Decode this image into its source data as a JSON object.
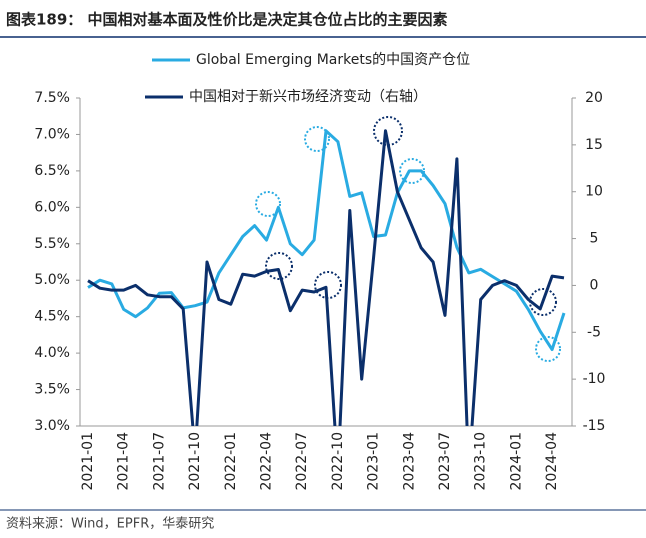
{
  "chart_data": {
    "type": "line",
    "title": "图表189：  中国相对基本面及性价比是决定其仓位占比的主要因素",
    "source": "资料来源：Wind，EPFR，华泰研究",
    "categories": [
      "2021-01",
      null,
      null,
      "2021-04",
      null,
      null,
      "2021-07",
      null,
      null,
      "2021-10",
      null,
      null,
      "2022-01",
      null,
      null,
      "2022-04",
      null,
      null,
      "2022-07",
      null,
      null,
      "2022-10",
      null,
      null,
      "2023-01",
      null,
      null,
      "2023-04",
      null,
      null,
      "2023-07",
      null,
      null,
      "2023-10",
      null,
      null,
      "2024-01",
      null,
      null,
      "2024-04",
      null
    ],
    "series": [
      {
        "name": "Global Emerging Markets的中国资产仓位",
        "color": "#29abe2",
        "values": [
          4.9,
          5.0,
          4.95,
          4.6,
          4.5,
          4.62,
          4.82,
          4.83,
          4.62,
          4.65,
          4.7,
          5.1,
          5.35,
          5.6,
          5.75,
          5.55,
          6.0,
          5.5,
          5.35,
          5.55,
          7.05,
          6.9,
          6.15,
          6.2,
          5.6,
          5.62,
          6.2,
          6.5,
          6.5,
          6.3,
          6.05,
          5.45,
          5.1,
          5.15,
          5.05,
          4.95,
          4.85,
          4.6,
          4.3,
          4.05,
          4.55
        ]
      },
      {
        "name": "中国相对于新兴市场经济变动（右轴）",
        "color": "#0b2f6b",
        "axis": "y2",
        "values": [
          0.5,
          -0.3,
          -0.5,
          -0.5,
          0,
          -1,
          -1.2,
          -1.2,
          -2.5,
          -18,
          2.5,
          -1.5,
          -2,
          1.2,
          1,
          1.5,
          1.7,
          -2.7,
          -0.5,
          -0.7,
          -0.2,
          -20,
          8,
          -10,
          3,
          16.5,
          10,
          7,
          4,
          2.5,
          -3.2,
          13.5,
          -20,
          -1.5,
          0,
          0.5,
          0,
          -1.5,
          -2.5,
          1,
          0.8
        ]
      }
    ],
    "ylim": [
      3.0,
      7.5
    ],
    "yticks": [
      {
        "value": 3.0,
        "label": "3.0%"
      },
      {
        "value": 3.5,
        "label": "3.5%"
      },
      {
        "value": 4.0,
        "label": "4.0%"
      },
      {
        "value": 4.5,
        "label": "4.5%"
      },
      {
        "value": 5.0,
        "label": "5.0%"
      },
      {
        "value": 5.5,
        "label": "5.5%"
      },
      {
        "value": 6.0,
        "label": "6.0%"
      },
      {
        "value": 6.5,
        "label": "6.5%"
      },
      {
        "value": 7.0,
        "label": "7.0%"
      },
      {
        "value": 7.5,
        "label": "7.5%"
      }
    ],
    "y2lim": [
      -15,
      20
    ],
    "y2ticks": [
      -15,
      -10,
      -5,
      0,
      5,
      10,
      15,
      20
    ],
    "grid": false,
    "legend": "top"
  }
}
